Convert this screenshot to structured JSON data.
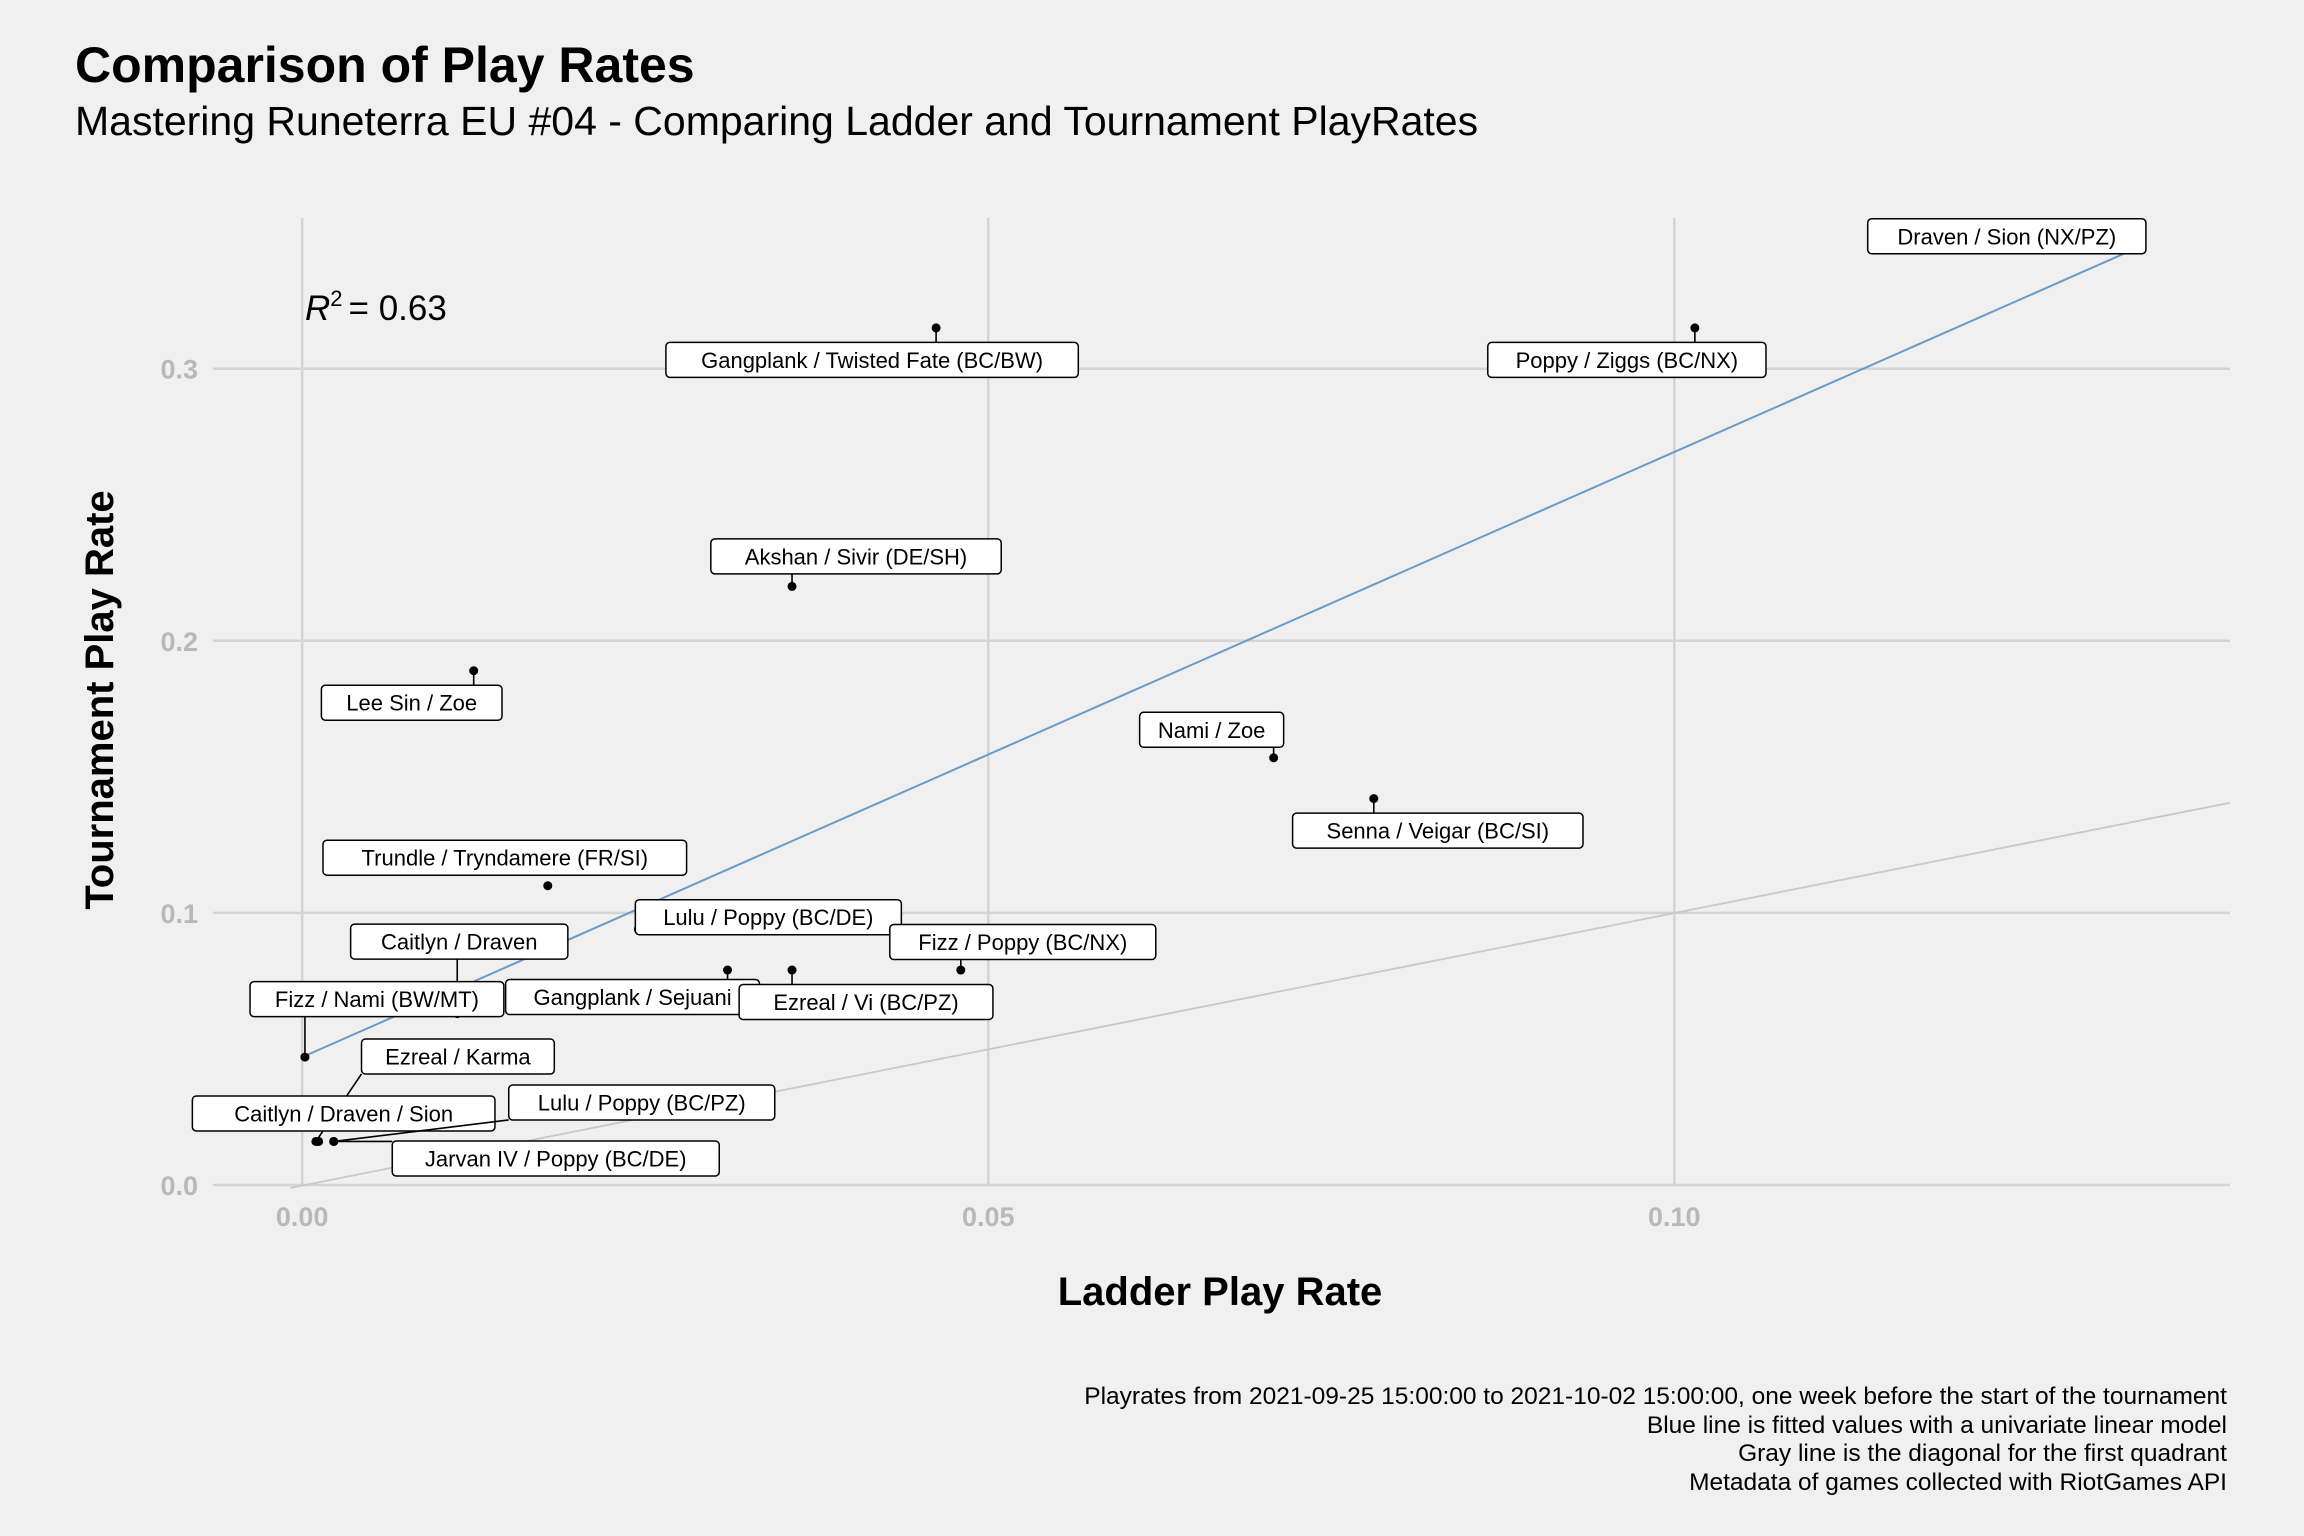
{
  "title": "Comparison of Play Rates",
  "subtitle": "Mastering Runeterra EU #04 - Comparing Ladder and Tournament PlayRates",
  "r2": {
    "text": "= 0.63"
  },
  "caption": [
    "Playrates from 2021-09-25 15:00:00 to 2021-10-02 15:00:00, one week before the start of the tournament",
    "Blue line is fitted values with a univariate linear model",
    "Gray line is the diagonal for the first quadrant",
    "Metadata of games collected with RiotGames API"
  ],
  "colors": {
    "fit_line": "#6a9bc8",
    "diagonal": "#c8c8c8",
    "background": "#f0f0f0",
    "grid": "#d4d4d4"
  },
  "chart_data": {
    "type": "scatter",
    "xlabel": "Ladder Play Rate",
    "ylabel": "Tournament Play Rate",
    "xlim": [
      -0.0065,
      0.1405
    ],
    "ylim": [
      0,
      0.362
    ],
    "xticks": [
      0.0,
      0.05,
      0.1
    ],
    "xtick_labels": [
      "0.00",
      "0.05",
      "0.10"
    ],
    "yticks": [
      0.0,
      0.1,
      0.2,
      0.3
    ],
    "ytick_labels": [
      "0.0",
      "0.1",
      "0.2",
      "0.3"
    ],
    "grid": true,
    "r_squared": 0.63,
    "fit_line": {
      "x": [
        0.0,
        0.134
      ],
      "y": [
        0.047,
        0.345
      ]
    },
    "diagonal": {
      "x": [
        0.0,
        0.1405
      ],
      "y": [
        0.0,
        0.1405
      ]
    },
    "points": [
      {
        "label": "Draven / Sion (NX/PZ)",
        "x": 0.134,
        "y": 0.345
      },
      {
        "label": "Poppy / Ziggs (BC/NX)",
        "x": 0.1015,
        "y": 0.315
      },
      {
        "label": "Gangplank / Twisted Fate (BC/BW)",
        "x": 0.0462,
        "y": 0.315
      },
      {
        "label": "Akshan / Sivir (DE/SH)",
        "x": 0.0357,
        "y": 0.22
      },
      {
        "label": "Lee Sin / Zoe",
        "x": 0.0125,
        "y": 0.189
      },
      {
        "label": "Nami / Zoe",
        "x": 0.0708,
        "y": 0.157
      },
      {
        "label": "Senna / Veigar (BC/SI)",
        "x": 0.0781,
        "y": 0.142
      },
      {
        "label": "Trundle / Tryndamere (FR/SI)",
        "x": 0.0179,
        "y": 0.11
      },
      {
        "label": "Lulu / Poppy (BC/DE)",
        "x": 0.0245,
        "y": 0.094
      },
      {
        "label": "Caitlyn / Draven",
        "x": 0.0113,
        "y": 0.063
      },
      {
        "label": "Gangplank / Sejuani",
        "x": 0.031,
        "y": 0.079
      },
      {
        "label": "Ezreal / Vi (BC/PZ)",
        "x": 0.0357,
        "y": 0.079
      },
      {
        "label": "Fizz / Poppy (BC/NX)",
        "x": 0.048,
        "y": 0.079
      },
      {
        "label": "Fizz / Nami (BW/MT)",
        "x": 0.0002,
        "y": 0.047
      },
      {
        "label": "Ezreal / Karma",
        "x": 0.001,
        "y": 0.016
      },
      {
        "label": "Caitlyn / Draven / Sion",
        "x": 0.0012,
        "y": 0.016
      },
      {
        "label": "Lulu / Poppy (BC/PZ)",
        "x": 0.0023,
        "y": 0.016
      },
      {
        "label": "Jarvan IV / Poppy (BC/DE)",
        "x": 0.0023,
        "y": 0.016
      }
    ]
  }
}
